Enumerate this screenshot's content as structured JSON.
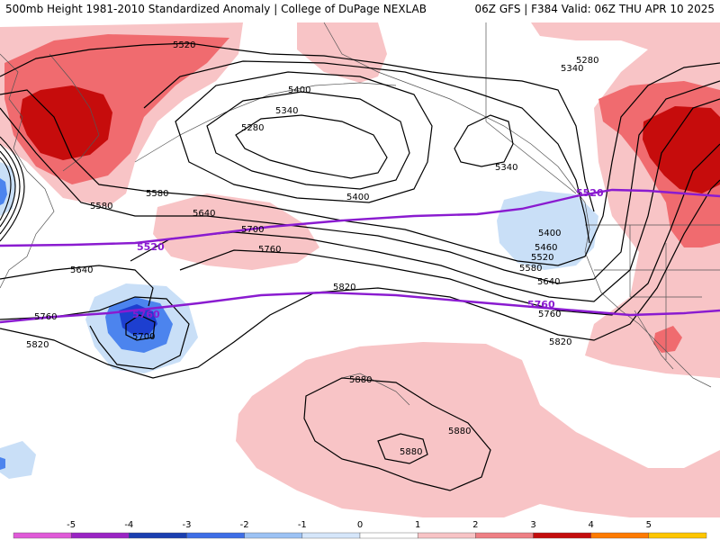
{
  "header": {
    "title_left": "500mb Height 1981-2010 Standardized Anomaly | College of DuPage NEXLAB",
    "title_right": "06Z GFS | F384 Valid: 06Z THU APR 10 2025"
  },
  "map": {
    "contour_labels": {
      "c5520_top": "5520",
      "c5400": "5400",
      "c5340": "5340",
      "c5280": "5280",
      "c5280_ne": "5280",
      "c5340_ne": "5340",
      "c5340_ak": "5340",
      "c5580_w": "5580",
      "c5580_mid": "5580",
      "c5640_w": "5640",
      "c5700": "5700",
      "c5760_w": "5760",
      "c5820_w": "5820",
      "c5640_sw": "5640",
      "c5760_left": "5760",
      "c5700_low": "5700",
      "c5820_left": "5820",
      "c5820_mid": "5820",
      "c5400_e": "5400",
      "c5460_e": "5460",
      "c5520_e": "5520",
      "c5580_e": "5580",
      "c5640_e": "5640",
      "c5760_e": "5760",
      "c5820_e": "5820",
      "c5880_a": "5880",
      "c5880_b": "5880",
      "c5880_c": "5880"
    },
    "purple_labels": {
      "p5520_w": "5520",
      "p5520_e": "5520",
      "p5760_w": "5760",
      "p5760_e": "5760"
    },
    "colors": {
      "ocean_bg": "#ffffff",
      "pink_light": "#f8c4c6",
      "red_med": "#f06b6f",
      "red_dark": "#c60c0c",
      "blue_light": "#c9dff7",
      "blue_med": "#4c84ee",
      "blue_dark": "#1d3fd0",
      "contour": "#000000",
      "purple": "#8a1bd0"
    }
  },
  "colorbar": {
    "labels": [
      "-5",
      "-4",
      "-3",
      "-2",
      "-1",
      "0",
      "1",
      "2",
      "3",
      "4",
      "5"
    ],
    "colors": [
      "#e05ad8",
      "#9a24c4",
      "#1a3fb0",
      "#3e6ee6",
      "#9cc2f4",
      "#d5e6fa",
      "#ffffff",
      "#f8c4c6",
      "#ee7f84",
      "#c40d0d",
      "#ff7a00",
      "#ffc600"
    ]
  }
}
